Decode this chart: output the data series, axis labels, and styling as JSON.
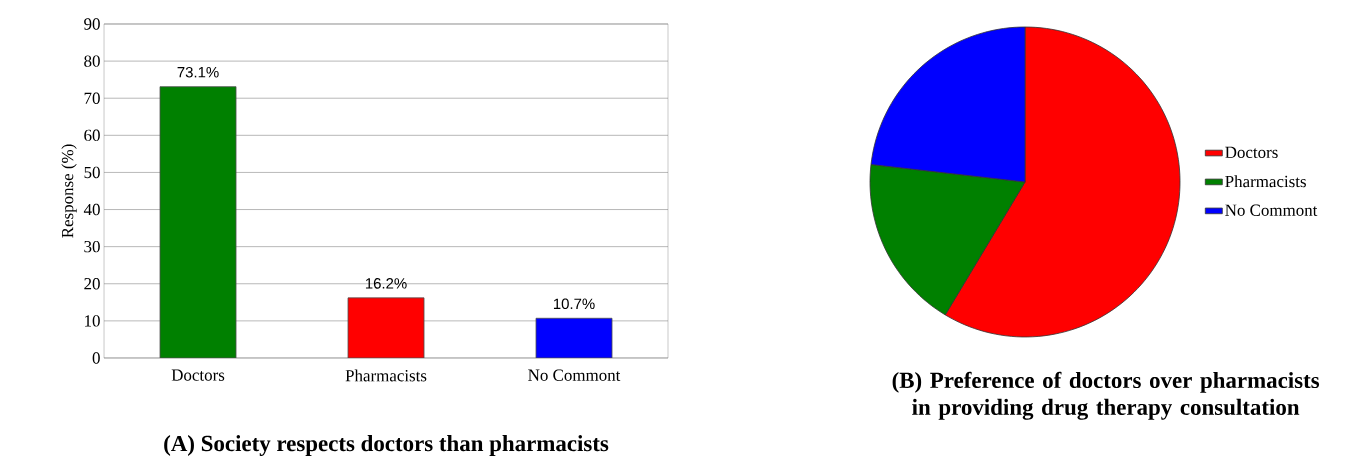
{
  "chart_data": [
    {
      "type": "bar",
      "title": "(A) Society respects doctors than pharmacists",
      "ylabel": "Response (%)",
      "categories": [
        "Doctors",
        "Pharmacists",
        "No Commont"
      ],
      "values": [
        73.1,
        16.2,
        10.7
      ],
      "colors": [
        "#008000",
        "#ff0000",
        "#0000ff"
      ],
      "value_labels": [
        "73.1%",
        "16.2%",
        "10.7%"
      ],
      "ylim": [
        0,
        90
      ],
      "yticks": [
        0,
        10,
        20,
        30,
        40,
        50,
        60,
        70,
        80,
        90
      ],
      "grid": "y"
    },
    {
      "type": "pie",
      "title": "(B) Preference of doctors over pharmacists in providing drug therapy consultation",
      "categories": [
        "Doctors",
        "Pharmacists",
        "No Commont"
      ],
      "values": [
        58.6,
        18.2,
        23.2
      ],
      "colors": [
        "#ff0000",
        "#008000",
        "#0000ff"
      ],
      "legend": "right"
    }
  ]
}
